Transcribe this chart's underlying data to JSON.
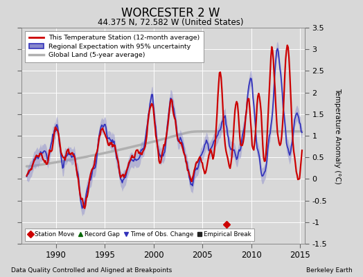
{
  "title": "WORCESTER 2 W",
  "subtitle": "44.375 N, 72.582 W (United States)",
  "ylabel": "Temperature Anomaly (°C)",
  "xlabel_left": "Data Quality Controlled and Aligned at Breakpoints",
  "xlabel_right": "Berkeley Earth",
  "ylim": [
    -1.5,
    3.5
  ],
  "xlim": [
    1986.5,
    2015.5
  ],
  "yticks": [
    -1.5,
    -1.0,
    -0.5,
    0.0,
    0.5,
    1.0,
    1.5,
    2.0,
    2.5,
    3.0,
    3.5
  ],
  "ytick_labels": [
    "-1.5",
    "-1",
    "-0.5",
    "0",
    "0.5",
    "1",
    "1.5",
    "2",
    "2.5",
    "3",
    "3.5"
  ],
  "xticks": [
    1990,
    1995,
    2000,
    2005,
    2010,
    2015
  ],
  "background_color": "#d8d8d8",
  "plot_background": "#d8d8d8",
  "red_color": "#cc0000",
  "blue_color": "#3333bb",
  "blue_fill": "#8888cc",
  "gray_color": "#b0b0b0",
  "station_marker_x": 2007.5,
  "station_marker_y": -1.05
}
